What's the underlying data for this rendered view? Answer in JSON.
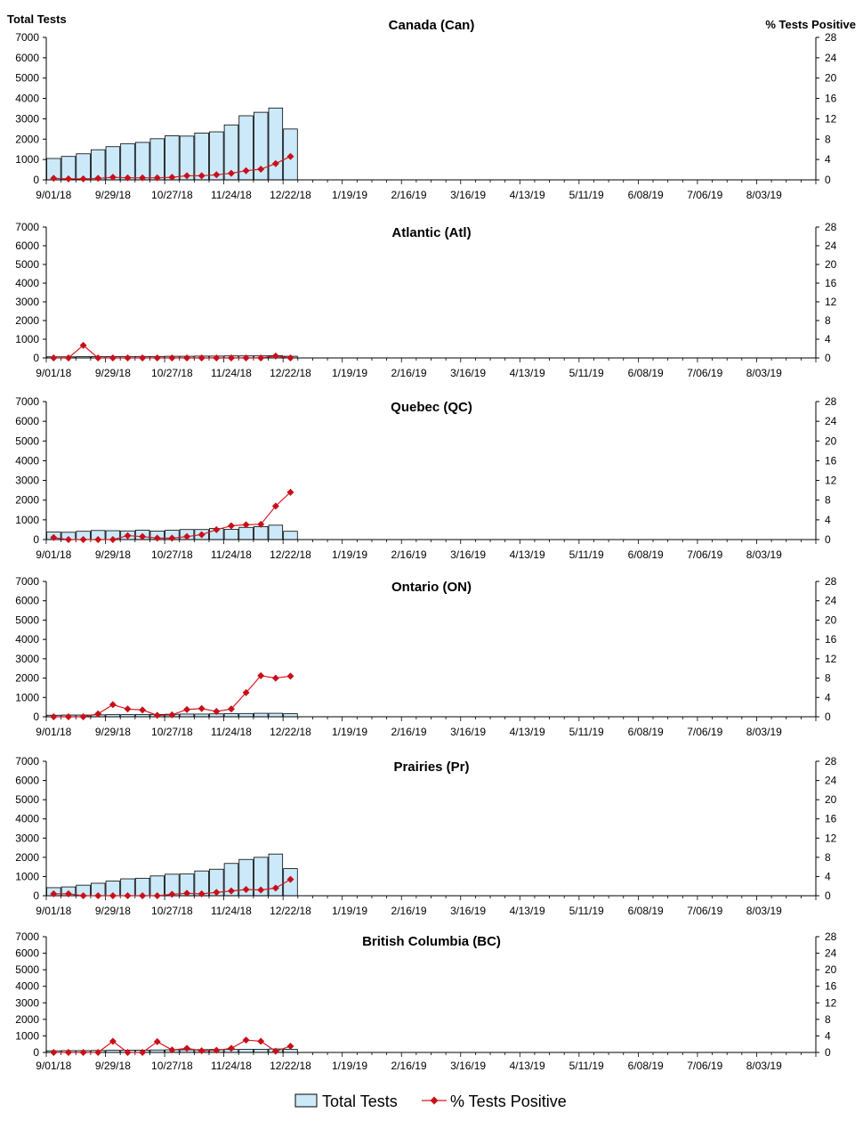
{
  "page": {
    "left_axis_title": "Total Tests",
    "right_axis_title": "% Tests Positive"
  },
  "legend": {
    "bar_label": "Total Tests",
    "line_label": "% Tests Positive"
  },
  "colors": {
    "bar_fill": "#cce9fa",
    "bar_stroke": "#000000",
    "line": "#d71920",
    "marker": "#c8101a",
    "axis": "#000000"
  },
  "chart_data": [
    {
      "type": "bar",
      "title": "Canada (Can)",
      "ylabel": "Total Tests",
      "y2label": "% Tests Positive",
      "ylim": [
        0,
        7000
      ],
      "y2lim": [
        0,
        28
      ],
      "yticks": [
        0,
        1000,
        2000,
        3000,
        4000,
        5000,
        6000,
        7000
      ],
      "y2ticks": [
        0,
        4,
        8,
        12,
        16,
        20,
        24,
        28
      ],
      "xtick_labels": [
        "9/01/18",
        "9/29/18",
        "10/27/18",
        "11/24/18",
        "12/22/18",
        "1/19/19",
        "2/16/19",
        "3/16/19",
        "4/13/19",
        "5/11/19",
        "6/08/19",
        "7/06/19",
        "8/03/19"
      ],
      "weeks_total": 52,
      "series": [
        {
          "name": "Total Tests",
          "type": "bar",
          "values": [
            1050,
            1150,
            1280,
            1480,
            1630,
            1780,
            1840,
            2020,
            2170,
            2150,
            2300,
            2360,
            2700,
            3150,
            3320,
            3530,
            2500
          ]
        },
        {
          "name": "% Tests Positive",
          "type": "line",
          "axis": "right",
          "values": [
            0.3,
            0.2,
            0.2,
            0.3,
            0.5,
            0.4,
            0.4,
            0.4,
            0.5,
            0.8,
            0.8,
            1.0,
            1.3,
            1.8,
            2.1,
            3.2,
            4.6
          ]
        }
      ]
    },
    {
      "type": "bar",
      "title": "Atlantic (Atl)",
      "ylim": [
        0,
        7000
      ],
      "y2lim": [
        0,
        28
      ],
      "yticks": [
        0,
        1000,
        2000,
        3000,
        4000,
        5000,
        6000,
        7000
      ],
      "y2ticks": [
        0,
        4,
        8,
        12,
        16,
        20,
        24,
        28
      ],
      "xtick_labels": [
        "9/01/18",
        "9/29/18",
        "10/27/18",
        "11/24/18",
        "12/22/18",
        "1/19/19",
        "2/16/19",
        "3/16/19",
        "4/13/19",
        "5/11/19",
        "6/08/19",
        "7/06/19",
        "8/03/19"
      ],
      "weeks_total": 52,
      "series": [
        {
          "name": "Total Tests",
          "type": "bar",
          "values": [
            60,
            60,
            70,
            70,
            70,
            80,
            80,
            80,
            90,
            90,
            100,
            100,
            110,
            110,
            110,
            120,
            90
          ]
        },
        {
          "name": "% Tests Positive",
          "type": "line",
          "axis": "right",
          "values": [
            0.0,
            0.0,
            2.7,
            0.0,
            0.0,
            0.0,
            0.0,
            0.0,
            0.0,
            0.0,
            0.0,
            0.0,
            0.0,
            0.0,
            0.0,
            0.4,
            0.0
          ]
        }
      ]
    },
    {
      "type": "bar",
      "title": "Quebec (QC)",
      "ylim": [
        0,
        7000
      ],
      "y2lim": [
        0,
        28
      ],
      "yticks": [
        0,
        1000,
        2000,
        3000,
        4000,
        5000,
        6000,
        7000
      ],
      "y2ticks": [
        0,
        4,
        8,
        12,
        16,
        20,
        24,
        28
      ],
      "xtick_labels": [
        "9/01/18",
        "9/29/18",
        "10/27/18",
        "11/24/18",
        "12/22/18",
        "1/19/19",
        "2/16/19",
        "3/16/19",
        "4/13/19",
        "5/11/19",
        "6/08/19",
        "7/06/19",
        "8/03/19"
      ],
      "weeks_total": 52,
      "series": [
        {
          "name": "Total Tests",
          "type": "bar",
          "values": [
            380,
            370,
            420,
            460,
            450,
            440,
            480,
            430,
            470,
            510,
            510,
            560,
            520,
            620,
            660,
            730,
            420
          ]
        },
        {
          "name": "% Tests Positive",
          "type": "line",
          "axis": "right",
          "values": [
            0.4,
            0.0,
            0.0,
            0.0,
            0.0,
            0.8,
            0.6,
            0.3,
            0.3,
            0.6,
            1.0,
            2.0,
            2.8,
            3.0,
            3.1,
            6.8,
            9.6
          ]
        }
      ]
    },
    {
      "type": "bar",
      "title": "Ontario (ON)",
      "ylim": [
        0,
        7000
      ],
      "y2lim": [
        0,
        28
      ],
      "yticks": [
        0,
        1000,
        2000,
        3000,
        4000,
        5000,
        6000,
        7000
      ],
      "y2ticks": [
        0,
        4,
        8,
        12,
        16,
        20,
        24,
        28
      ],
      "xtick_labels": [
        "9/01/18",
        "9/29/18",
        "10/27/18",
        "11/24/18",
        "12/22/18",
        "1/19/19",
        "2/16/19",
        "3/16/19",
        "4/13/19",
        "5/11/19",
        "6/08/19",
        "7/06/19",
        "8/03/19"
      ],
      "weeks_total": 52,
      "series": [
        {
          "name": "Total Tests",
          "type": "bar",
          "values": [
            80,
            90,
            90,
            100,
            110,
            110,
            120,
            120,
            130,
            140,
            140,
            150,
            160,
            170,
            180,
            180,
            160
          ]
        },
        {
          "name": "% Tests Positive",
          "type": "line",
          "axis": "right",
          "values": [
            0.0,
            0.0,
            0.0,
            0.6,
            2.5,
            1.6,
            1.4,
            0.3,
            0.4,
            1.5,
            1.7,
            1.1,
            1.6,
            5.0,
            8.5,
            8.0,
            8.4
          ]
        }
      ]
    },
    {
      "type": "bar",
      "title": "Prairies (Pr)",
      "ylim": [
        0,
        7000
      ],
      "y2lim": [
        0,
        28
      ],
      "yticks": [
        0,
        1000,
        2000,
        3000,
        4000,
        5000,
        6000,
        7000
      ],
      "y2ticks": [
        0,
        4,
        8,
        12,
        16,
        20,
        24,
        28
      ],
      "xtick_labels": [
        "9/01/18",
        "9/29/18",
        "10/27/18",
        "11/24/18",
        "12/22/18",
        "1/19/19",
        "2/16/19",
        "3/16/19",
        "4/13/19",
        "5/11/19",
        "6/08/19",
        "7/06/19",
        "8/03/19"
      ],
      "weeks_total": 52,
      "series": [
        {
          "name": "Total Tests",
          "type": "bar",
          "values": [
            420,
            460,
            550,
            650,
            760,
            880,
            910,
            1030,
            1120,
            1130,
            1290,
            1380,
            1680,
            1890,
            2000,
            2170,
            1410
          ]
        },
        {
          "name": "% Tests Positive",
          "type": "line",
          "axis": "right",
          "values": [
            0.4,
            0.4,
            0.0,
            0.0,
            0.0,
            0.0,
            0.0,
            0.0,
            0.3,
            0.5,
            0.4,
            0.7,
            1.0,
            1.3,
            1.2,
            1.6,
            3.4
          ]
        }
      ]
    },
    {
      "type": "bar",
      "title": "British Columbia (BC)",
      "ylim": [
        0,
        7000
      ],
      "y2lim": [
        0,
        28
      ],
      "yticks": [
        0,
        1000,
        2000,
        3000,
        4000,
        5000,
        6000,
        7000
      ],
      "y2ticks": [
        0,
        4,
        8,
        12,
        16,
        20,
        24,
        28
      ],
      "xtick_labels": [
        "9/01/18",
        "9/29/18",
        "10/27/18",
        "11/24/18",
        "12/22/18",
        "1/19/19",
        "2/16/19",
        "3/16/19",
        "4/13/19",
        "5/11/19",
        "6/08/19",
        "7/06/19",
        "8/03/19"
      ],
      "weeks_total": 52,
      "series": [
        {
          "name": "Total Tests",
          "type": "bar",
          "values": [
            100,
            110,
            110,
            120,
            130,
            140,
            140,
            150,
            160,
            160,
            170,
            180,
            180,
            190,
            190,
            210,
            190
          ]
        },
        {
          "name": "% Tests Positive",
          "type": "line",
          "axis": "right",
          "values": [
            0.0,
            0.0,
            0.0,
            0.0,
            2.7,
            0.0,
            0.0,
            2.6,
            0.6,
            1.0,
            0.4,
            0.5,
            1.0,
            3.0,
            2.7,
            0.3,
            1.5
          ]
        }
      ]
    }
  ]
}
